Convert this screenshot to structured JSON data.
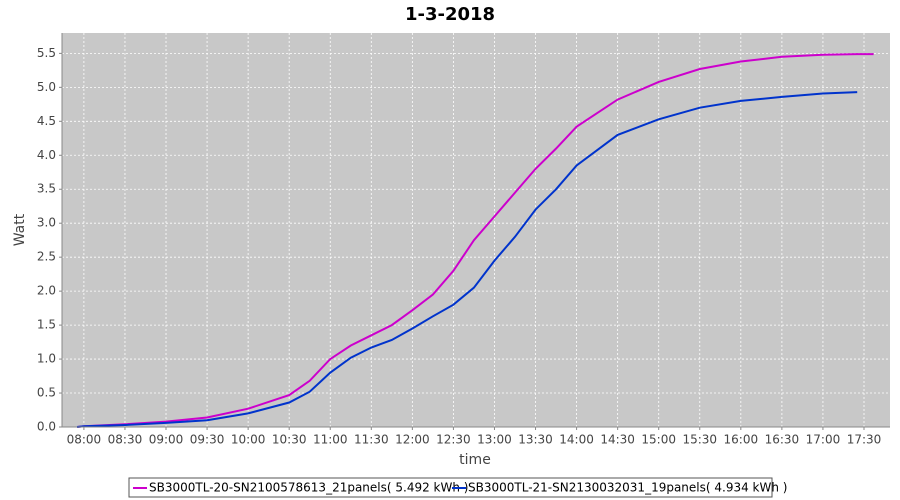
{
  "chart_data": {
    "type": "line",
    "title": "1-3-2018",
    "x_label": "time",
    "y_label": "Watt",
    "x": [
      "07:55",
      "08:00",
      "08:30",
      "09:00",
      "09:30",
      "10:00",
      "10:30",
      "10:45",
      "11:00",
      "11:15",
      "11:30",
      "11:45",
      "12:00",
      "12:15",
      "12:30",
      "12:45",
      "13:00",
      "13:15",
      "13:30",
      "13:45",
      "14:00",
      "14:30",
      "15:00",
      "15:30",
      "16:00",
      "16:30",
      "17:00",
      "17:25",
      "17:37"
    ],
    "series": [
      {
        "name": "SB3000TL-20-SN2100578613_21panels( 5.492 kWh )",
        "color": "#cc00cc",
        "values": [
          0,
          0.01,
          0.04,
          0.08,
          0.14,
          0.27,
          0.47,
          0.68,
          1.0,
          1.2,
          1.35,
          1.5,
          1.72,
          1.95,
          2.3,
          2.75,
          3.1,
          3.45,
          3.8,
          4.1,
          4.42,
          4.82,
          5.08,
          5.27,
          5.38,
          5.45,
          5.48,
          5.49,
          5.49
        ]
      },
      {
        "name": "SB3000TL-21-SN2130032031_19panels( 4.934 kWh )",
        "color": "#0033cc",
        "values": [
          0,
          0.01,
          0.03,
          0.06,
          0.1,
          0.2,
          0.36,
          0.52,
          0.8,
          1.02,
          1.17,
          1.28,
          1.45,
          1.63,
          1.8,
          2.05,
          2.45,
          2.8,
          3.2,
          3.5,
          3.85,
          4.3,
          4.53,
          4.7,
          4.8,
          4.86,
          4.91,
          4.93,
          null
        ]
      }
    ],
    "xlim": [
      "07:44",
      "17:49"
    ],
    "xticks": [
      "08:00",
      "08:30",
      "09:00",
      "09:30",
      "10:00",
      "10:30",
      "11:00",
      "11:30",
      "12:00",
      "12:30",
      "13:00",
      "13:30",
      "14:00",
      "14:30",
      "15:00",
      "15:30",
      "16:00",
      "16:30",
      "17:00",
      "17:30"
    ],
    "ylim": [
      0,
      5.8
    ],
    "yticks": [
      {
        "value": 0,
        "label": "0.0"
      },
      0.5,
      {
        "value": 1,
        "label": "1.0"
      },
      1.5,
      {
        "value": 2,
        "label": "2.0"
      },
      2.5,
      {
        "value": 3,
        "label": "3.0"
      },
      3.5,
      {
        "value": 4,
        "label": "4.0"
      },
      4.5,
      {
        "value": 5,
        "label": "5.0"
      },
      5.5
    ],
    "grid": true
  }
}
